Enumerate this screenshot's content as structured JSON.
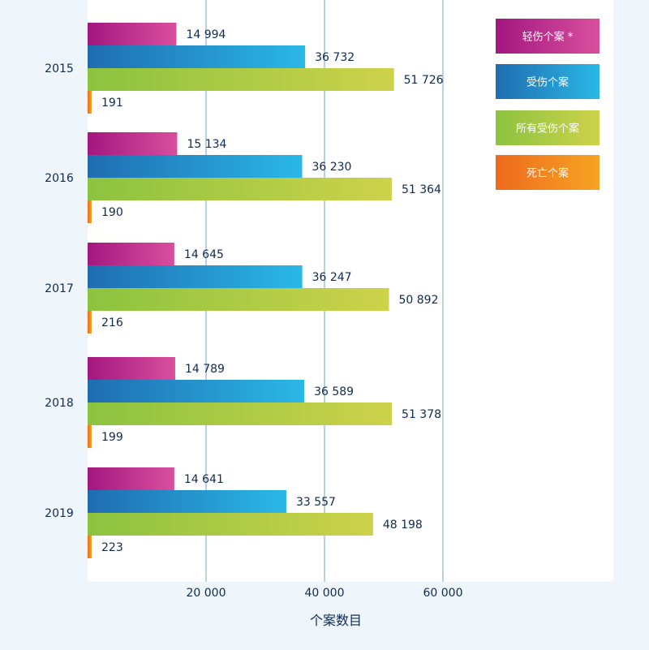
{
  "chart_data": {
    "type": "bar",
    "orientation": "horizontal",
    "categories": [
      "2015",
      "2016",
      "2017",
      "2018",
      "2019"
    ],
    "series": [
      {
        "name": "轻伤个案 *",
        "color_start": "#a3177f",
        "color_end": "#d94f9e",
        "values": [
          14994,
          15134,
          14645,
          14789,
          14641
        ],
        "labels": [
          "14 994",
          "15 134",
          "14 645",
          "14 789",
          "14 641"
        ]
      },
      {
        "name": "受伤个案",
        "color_start": "#1f6db0",
        "color_end": "#2ab8e6",
        "values": [
          36732,
          36230,
          36247,
          36589,
          33557
        ],
        "labels": [
          "36 732",
          "36 230",
          "36 247",
          "36 589",
          "33 557"
        ]
      },
      {
        "name": "所有受伤个案",
        "color_start": "#8cc340",
        "color_end": "#cdd24a",
        "values": [
          51726,
          51364,
          50892,
          51378,
          48198
        ],
        "labels": [
          "51 726",
          "51 364",
          "50 892",
          "51 378",
          "48 198"
        ]
      },
      {
        "name": "死亡个案",
        "color_start": "#ee6a1d",
        "color_end": "#f6a423",
        "values": [
          191,
          190,
          216,
          199,
          223
        ],
        "labels": [
          "191",
          "190",
          "216",
          "199",
          "223"
        ]
      }
    ],
    "xlabel": "个案数目",
    "ylabel": "",
    "xlim": [
      0,
      89000
    ],
    "xticks": [
      20000,
      40000,
      60000
    ],
    "xtick_labels": [
      "20 000",
      "40 000",
      "60 000"
    ],
    "grid": true,
    "legend_position": "top-right"
  }
}
